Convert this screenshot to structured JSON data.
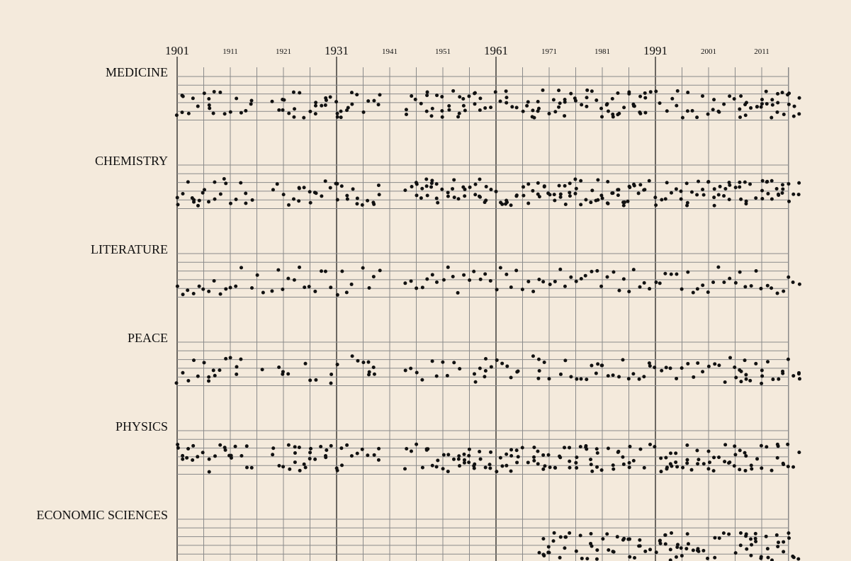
{
  "chart_data": {
    "type": "scatter",
    "title": "",
    "x_range": [
      1901,
      2018
    ],
    "year_ticks": [
      {
        "year": 1901,
        "label": "1901",
        "major": true
      },
      {
        "year": 1911,
        "label": "1911",
        "major": false
      },
      {
        "year": 1921,
        "label": "1921",
        "major": false
      },
      {
        "year": 1931,
        "label": "1931",
        "major": true
      },
      {
        "year": 1941,
        "label": "1941",
        "major": false
      },
      {
        "year": 1951,
        "label": "1951",
        "major": false
      },
      {
        "year": 1961,
        "label": "1961",
        "major": true
      },
      {
        "year": 1971,
        "label": "1971",
        "major": false
      },
      {
        "year": 1981,
        "label": "1981",
        "major": false
      },
      {
        "year": 1991,
        "label": "1991",
        "major": true
      },
      {
        "year": 2001,
        "label": "2001",
        "major": false
      },
      {
        "year": 2011,
        "label": "2011",
        "major": false
      }
    ],
    "minor_gridline_years": [
      1906,
      1916,
      1926,
      1936,
      1946,
      1956,
      1966,
      1976,
      1986,
      1996,
      2006,
      2016
    ],
    "staff_lines_per_category": 6,
    "grid": true,
    "colors": {
      "background": "#f4eadc",
      "dot": "#111111",
      "minor_grid": "#8a8a8a",
      "major_grid": "#111111"
    },
    "categories": [
      {
        "name": "MEDICINE",
        "start_year": 1901,
        "seed": 11
      },
      {
        "name": "CHEMISTRY",
        "start_year": 1901,
        "seed": 23
      },
      {
        "name": "LITERATURE",
        "start_year": 1901,
        "seed": 37
      },
      {
        "name": "PEACE",
        "start_year": 1901,
        "seed": 41
      },
      {
        "name": "PHYSICS",
        "start_year": 1901,
        "seed": 53
      },
      {
        "name": "ECONOMIC SCIENCES",
        "start_year": 1969,
        "seed": 67
      }
    ],
    "gaps": [
      [
        1916,
        1918
      ],
      [
        1940,
        1942
      ],
      [
        1943,
        1943
      ]
    ],
    "peace_gaps": [
      [
        1914,
        1916
      ],
      [
        1918,
        1919
      ],
      [
        1923,
        1924
      ],
      [
        1928,
        1929
      ],
      [
        1932,
        1933
      ],
      [
        1939,
        1943
      ],
      [
        1948,
        1948
      ],
      [
        1955,
        1956
      ],
      [
        1966,
        1967
      ],
      [
        1972,
        1972
      ]
    ],
    "literature_gaps": [
      [
        1914,
        1914
      ],
      [
        1918,
        1918
      ],
      [
        1935,
        1935
      ],
      [
        1940,
        1943
      ]
    ]
  }
}
